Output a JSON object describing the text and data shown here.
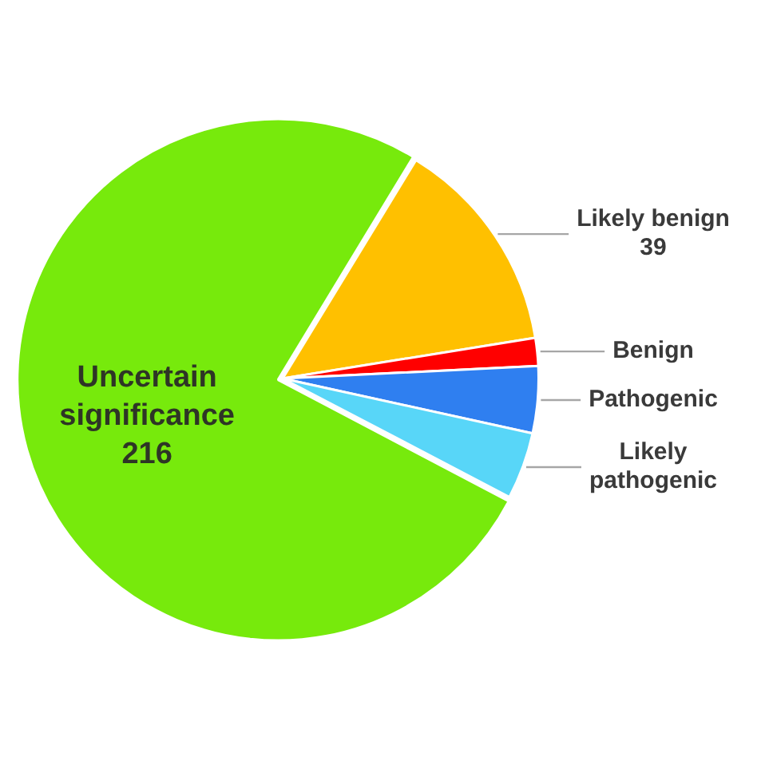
{
  "chart_data": {
    "type": "pie",
    "categories": [
      "Uncertain significance",
      "Likely benign",
      "Benign",
      "Pathogenic",
      "Likely pathogenic"
    ],
    "values": [
      216,
      39,
      5,
      12,
      12
    ],
    "colors": [
      "#77ea0c",
      "#ffc000",
      "#ff0000",
      "#2f7ff0",
      "#58d6f8"
    ],
    "value_labels": [
      "216",
      "39",
      null,
      null,
      null
    ]
  }
}
